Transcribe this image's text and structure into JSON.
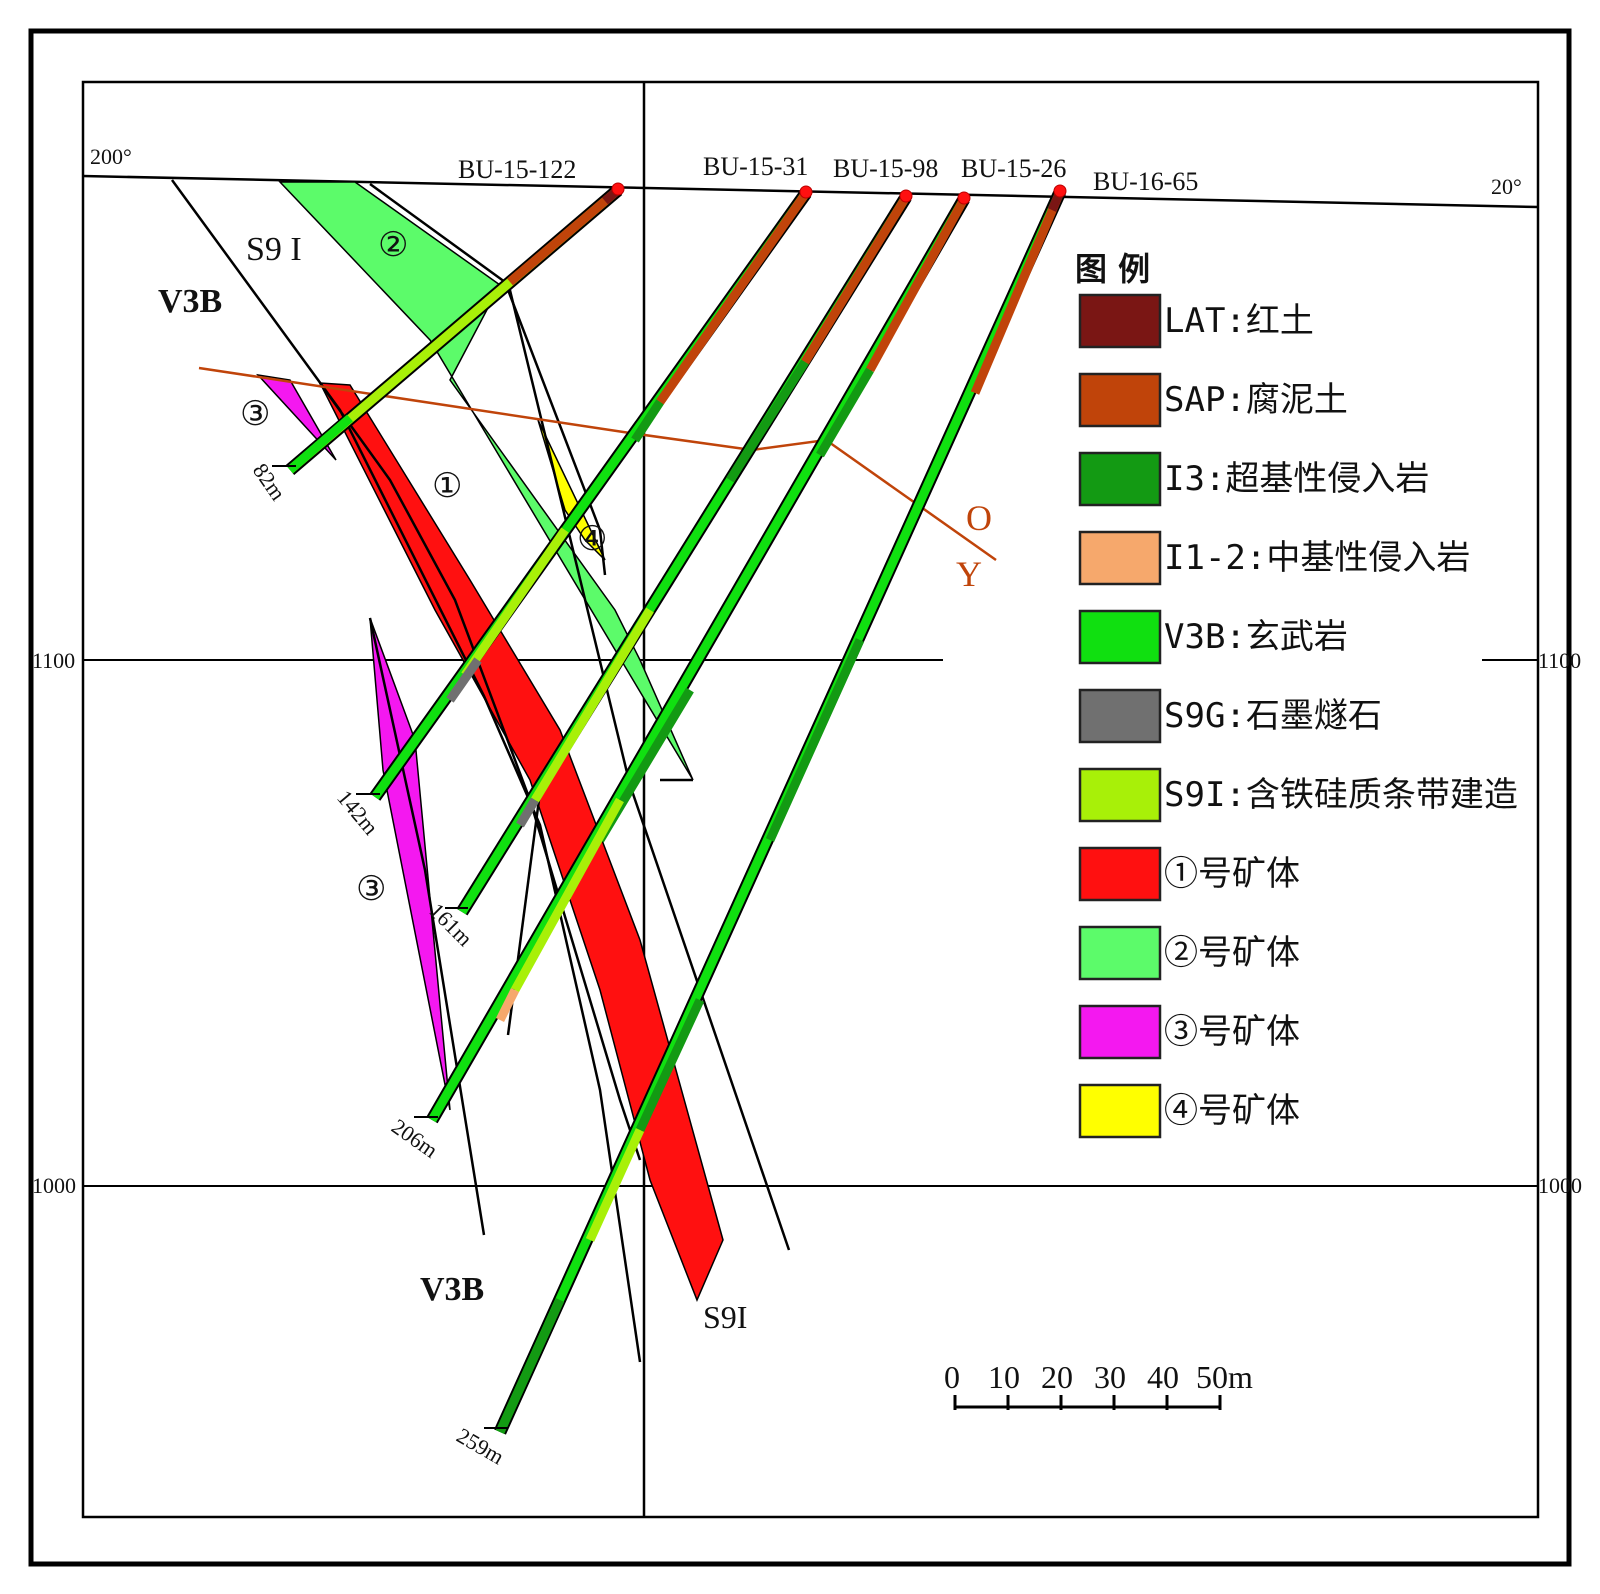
{
  "frame": {
    "angle_left": "200°",
    "angle_right": "20°",
    "elev_1100_left": "1100",
    "elev_1100_right": "1100",
    "elev_1000_left": "1000",
    "elev_1000_right": "1000"
  },
  "holes": [
    {
      "name": "BU-15-122",
      "depth": "82m"
    },
    {
      "name": "BU-15-31",
      "depth": "142m"
    },
    {
      "name": "BU-15-98",
      "depth": "161m"
    },
    {
      "name": "BU-15-26",
      "depth": "206m"
    },
    {
      "name": "BU-16-65",
      "depth": "259m"
    }
  ],
  "labels": {
    "s9i_top": "S9 I",
    "v3b_top": "V3B",
    "v3b_bottom": "V3B",
    "s9i_bottom": "S9I",
    "ore1": "①",
    "ore2": "②",
    "ore3a": "③",
    "ore3b": "③",
    "ore4": "④",
    "line_o": "O",
    "line_y": "Y"
  },
  "scale": {
    "ticks": [
      "0",
      "10",
      "20",
      "30",
      "40",
      "50m"
    ]
  },
  "legend": {
    "title": "图  例",
    "items": [
      {
        "label": "LAT:红土",
        "color": "#7a1614"
      },
      {
        "label": "SAP:腐泥土",
        "color": "#c0440a"
      },
      {
        "label": "I3:超基性侵入岩",
        "color": "#139a13"
      },
      {
        "label": "I1-2:中基性侵入岩",
        "color": "#f6a86c"
      },
      {
        "label": "V3B:玄武岩",
        "color": "#10e010"
      },
      {
        "label": "S9G:石墨燧石",
        "color": "#707070"
      },
      {
        "label": "S9I:含铁硅质条带建造",
        "color": "#a8f008"
      },
      {
        "label": "①号矿体",
        "color": "#ff1010"
      },
      {
        "label": "②号矿体",
        "color": "#5cfb6a"
      },
      {
        "label": "③号矿体",
        "color": "#f418f0"
      },
      {
        "label": "④号矿体",
        "color": "#ffff00"
      }
    ]
  }
}
